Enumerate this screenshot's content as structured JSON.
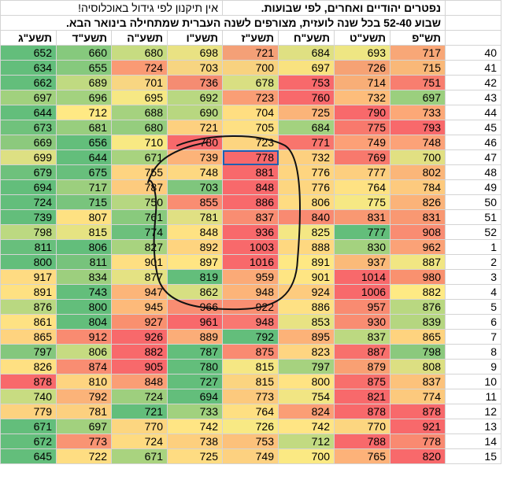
{
  "title_main": "נפטרים יהודיים ואחרים, לפי שבועות.",
  "title_note": "אין תיקנון לפי גידול באוכלוסיה!",
  "subtitle": "שבוע 52-40 בכל שנה לועזית, מצורפים לשנה העברית שמתחילה בינואר הבא.",
  "headers": [
    "תשע\"ג",
    "תשע\"ד",
    "תשע\"ה",
    "תשע\"ו",
    "תשע\"ז",
    "תשע\"ח",
    "תשע\"ט",
    "תש\"פ"
  ],
  "rows": [
    {
      "week": "40",
      "values": [
        652,
        660,
        680,
        698,
        721,
        684,
        693,
        717
      ],
      "colors": [
        "#63be7b",
        "#86c97d",
        "#c7dc81",
        "#e9e283",
        "#f4a077",
        "#dfe082",
        "#eee683",
        "#f8a777"
      ]
    },
    {
      "week": "41",
      "values": [
        634,
        655,
        724,
        703,
        700,
        697,
        726,
        715
      ],
      "colors": [
        "#63be7b",
        "#86c97d",
        "#fa9a74",
        "#f7d581",
        "#f8d27f",
        "#f9e27f",
        "#f6a274",
        "#f9b878"
      ]
    },
    {
      "week": "42",
      "values": [
        662,
        689,
        701,
        736,
        678,
        753,
        714,
        751
      ],
      "colors": [
        "#63be7b",
        "#c0da81",
        "#f8d682",
        "#f58c72",
        "#d9df82",
        "#f8696b",
        "#f8ae77",
        "#f87e6f"
      ]
    },
    {
      "week": "43",
      "values": [
        697,
        696,
        695,
        692,
        723,
        760,
        732,
        697
      ],
      "colors": [
        "#a1d17e",
        "#a3d27f",
        "#f6e884",
        "#b9d881",
        "#fa9e75",
        "#f8696b",
        "#fdbd7b",
        "#9bcf7e"
      ]
    },
    {
      "week": "44",
      "values": [
        644,
        712,
        688,
        690,
        704,
        725,
        790,
        733
      ],
      "colors": [
        "#63be7b",
        "#ffe984",
        "#a5d27f",
        "#b8d780",
        "#ffde81",
        "#fbb479",
        "#f8696b",
        "#fca877"
      ]
    },
    {
      "week": "45",
      "values": [
        673,
        681,
        680,
        721,
        705,
        684,
        775,
        793
      ],
      "colors": [
        "#70c27c",
        "#98ce7e",
        "#95cd7e",
        "#fdd07f",
        "#fee083",
        "#a3d27f",
        "#f8796d",
        "#f8696b"
      ]
    },
    {
      "week": "46",
      "values": [
        669,
        656,
        710,
        780,
        723,
        771,
        749,
        748
      ],
      "colors": [
        "#8cc97d",
        "#63be7b",
        "#f8e983",
        "#f8696b",
        "#fdd580",
        "#f8756d",
        "#fca077",
        "#fca278"
      ]
    },
    {
      "week": "47",
      "values": [
        699,
        644,
        671,
        739,
        778,
        732,
        769,
        700
      ],
      "colors": [
        "#dde083",
        "#63be7b",
        "#a8d37f",
        "#fcb379",
        "#f8696b",
        "#fdd07f",
        "#f8796d",
        "#e1e082"
      ]
    },
    {
      "week": "48",
      "values": [
        679,
        675,
        755,
        748,
        881,
        776,
        777,
        802
      ],
      "colors": [
        "#6ec17c",
        "#68bf7c",
        "#fed481",
        "#fdd881",
        "#f8696b",
        "#fed580",
        "#fdcf7f",
        "#fbb679"
      ]
    },
    {
      "week": "49",
      "values": [
        694,
        717,
        787,
        703,
        848,
        776,
        764,
        784
      ],
      "colors": [
        "#63be7b",
        "#9ccf7e",
        "#fdcb7e",
        "#7fc67d",
        "#f8696b",
        "#fdd680",
        "#fee283",
        "#fdca7e"
      ]
    },
    {
      "week": "50",
      "values": [
        724,
        715,
        750,
        855,
        886,
        806,
        775,
        826
      ],
      "colors": [
        "#63be7b",
        "#79c47d",
        "#b6d781",
        "#f98d72",
        "#f8696b",
        "#fedc82",
        "#f6e884",
        "#fbb379"
      ]
    },
    {
      "week": "51",
      "values": [
        739,
        807,
        761,
        781,
        837,
        840,
        831,
        831
      ],
      "colors": [
        "#63be7b",
        "#fee182",
        "#89ca7d",
        "#e0e083",
        "#f98d72",
        "#f98a71",
        "#f99872",
        "#f99872"
      ]
    },
    {
      "week": "52",
      "values": [
        798,
        815,
        774,
        848,
        936,
        825,
        777,
        908
      ],
      "colors": [
        "#bcd981",
        "#e6e382",
        "#6cc07c",
        "#fee283",
        "#f8696b",
        "#f4e784",
        "#63be7b",
        "#f98c72"
      ]
    },
    {
      "week": "1",
      "values": [
        811,
        806,
        827,
        892,
        1003,
        888,
        830,
        962
      ],
      "colors": [
        "#68bf7c",
        "#63be7b",
        "#a8d37f",
        "#fed47f",
        "#f8696b",
        "#fed880",
        "#a4d27f",
        "#fba277"
      ]
    },
    {
      "week": "2",
      "values": [
        800,
        811,
        901,
        897,
        1016,
        891,
        937,
        887
      ],
      "colors": [
        "#63be7b",
        "#77c37c",
        "#fedf82",
        "#ffe583",
        "#f8696b",
        "#fee884",
        "#fbba79",
        "#f1e683"
      ]
    },
    {
      "week": "3",
      "values": [
        917,
        834,
        877,
        819,
        959,
        901,
        1014,
        980
      ],
      "colors": [
        "#fedb82",
        "#9dcf7e",
        "#e4e283",
        "#63be7b",
        "#fbaa77",
        "#fee583",
        "#f8696b",
        "#f9916f"
      ]
    },
    {
      "week": "4",
      "values": [
        891,
        743,
        947,
        862,
        948,
        924,
        1006,
        882
      ],
      "colors": [
        "#fee182",
        "#63be7b",
        "#fcb579",
        "#d7df82",
        "#fcb479",
        "#fdcb7e",
        "#f8696b",
        "#feea84"
      ]
    },
    {
      "week": "5",
      "values": [
        876,
        800,
        945,
        966,
        922,
        886,
        957,
        876
      ],
      "colors": [
        "#b9d881",
        "#63be7b",
        "#fdba7a",
        "#f98d72",
        "#f98f72",
        "#fee184",
        "#f98b71",
        "#b9d881"
      ]
    },
    {
      "week": "6",
      "values": [
        861,
        804,
        927,
        961,
        948,
        853,
        930,
        839
      ],
      "colors": [
        "#fee283",
        "#63be7b",
        "#f9906f",
        "#f8696b",
        "#f97871",
        "#e8e383",
        "#f98d72",
        "#b5d680"
      ]
    },
    {
      "week": "7",
      "values": [
        865,
        912,
        926,
        889,
        792,
        895,
        837,
        865
      ],
      "colors": [
        "#fed37f",
        "#f98b71",
        "#f8696b",
        "#fbad78",
        "#63be7b",
        "#fcb278",
        "#bcd981",
        "#fed37f"
      ]
    },
    {
      "week": "8",
      "values": [
        797,
        806,
        882,
        787,
        875,
        823,
        887,
        798
      ],
      "colors": [
        "#84c77d",
        "#c6db81",
        "#f8696b",
        "#63be7b",
        "#f98a71",
        "#fed581",
        "#f8706c",
        "#8bc97d"
      ]
    },
    {
      "week": "9",
      "values": [
        826,
        874,
        905,
        780,
        815,
        797,
        879,
        808
      ],
      "colors": [
        "#fee082",
        "#f98d72",
        "#f8696b",
        "#63be7b",
        "#f5e784",
        "#a6d27f",
        "#f9a073",
        "#dcdf82"
      ]
    },
    {
      "week": "10",
      "values": [
        878,
        810,
        848,
        727,
        815,
        800,
        875,
        837
      ],
      "colors": [
        "#f8696b",
        "#fed480",
        "#fa9e75",
        "#63be7b",
        "#fbd480",
        "#ffe383",
        "#f86f6c",
        "#fcc27b"
      ]
    },
    {
      "week": "11",
      "values": [
        740,
        792,
        724,
        694,
        773,
        754,
        821,
        774
      ],
      "colors": [
        "#c8dc81",
        "#fbb379",
        "#9ecf7e",
        "#63be7b",
        "#fcc97d",
        "#f1e583",
        "#f8696b",
        "#fcc97d"
      ]
    },
    {
      "week": "12",
      "values": [
        779,
        781,
        721,
        733,
        764,
        824,
        878,
        878
      ],
      "colors": [
        "#fcd27f",
        "#fcd07f",
        "#63be7b",
        "#a1d17e",
        "#fedf82",
        "#fb9e75",
        "#f8696b",
        "#f8696b"
      ]
    },
    {
      "week": "13",
      "values": [
        671,
        697,
        770,
        742,
        726,
        742,
        770,
        921
      ],
      "colors": [
        "#63be7b",
        "#a2d17e",
        "#fcd680",
        "#ffe584",
        "#f8e984",
        "#ffe584",
        "#fcd680",
        "#f8696b"
      ]
    },
    {
      "week": "14",
      "values": [
        672,
        773,
        724,
        738,
        753,
        712,
        788,
        778
      ],
      "colors": [
        "#63be7b",
        "#f99473",
        "#fedb81",
        "#fdcf7e",
        "#fcc17b",
        "#c2da81",
        "#f8696b",
        "#f98a71"
      ]
    },
    {
      "week": "15",
      "values": [
        645,
        722,
        671,
        725,
        749,
        700,
        765,
        820
      ],
      "colors": [
        "#63be7b",
        "#fedd82",
        "#a9d37f",
        "#fedc82",
        "#fdd180",
        "#fbe983",
        "#fdb279",
        "#f8696b"
      ]
    }
  ]
}
